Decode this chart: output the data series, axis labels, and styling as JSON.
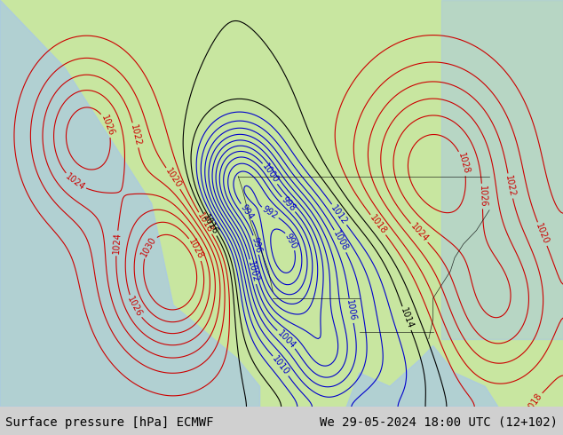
{
  "title_left": "Surface pressure [hPa] ECMWF",
  "title_right": "We 29-05-2024 18:00 UTC (12+102)",
  "background_color": "#c8e6a0",
  "land_color": "#c8e6a0",
  "ocean_color": "#c8d4e8",
  "fig_width": 6.34,
  "fig_height": 4.9,
  "dpi": 100,
  "footer_fontsize": 10,
  "footer_bg": "#d0d0d0",
  "map_bg": "#b8d090",
  "contour_interval": 2,
  "pressure_min": 980,
  "pressure_max": 1030,
  "blue_contour_color": "#0000cc",
  "red_contour_color": "#cc0000",
  "black_contour_color": "#000000",
  "label_fontsize": 7,
  "contour_linewidth": 0.8
}
